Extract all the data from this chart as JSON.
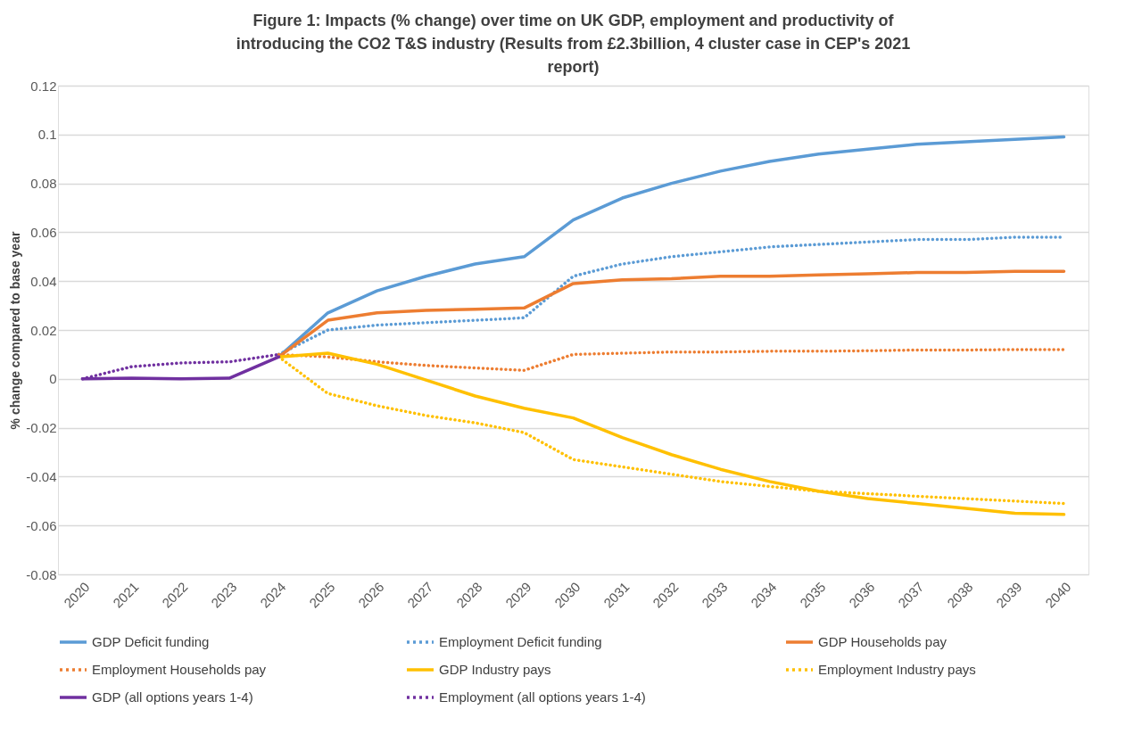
{
  "chart_data": {
    "type": "line",
    "title": "Figure 1: Impacts (% change) over time on UK GDP, employment and productivity of introducing the CO2 T&S industry (Results from £2.3billion, 4 cluster case in CEP's 2021 report)",
    "ylabel": "% change compared to base year",
    "categories": [
      "2020",
      "2021",
      "2022",
      "2023",
      "2024",
      "2025",
      "2026",
      "2027",
      "2028",
      "2029",
      "2030",
      "2031",
      "2032",
      "2033",
      "2034",
      "2035",
      "2036",
      "2037",
      "2038",
      "2039",
      "2040"
    ],
    "ylim": [
      -0.08,
      0.12
    ],
    "yticks": [
      -0.08,
      -0.06,
      -0.04,
      -0.02,
      0,
      0.02,
      0.04,
      0.06,
      0.08,
      0.1,
      0.12
    ],
    "grid": "y",
    "legend": "bottom",
    "series": [
      {
        "name": "GDP Deficit funding",
        "color": "#5b9bd5",
        "line_style": "solid",
        "values": [
          null,
          null,
          null,
          null,
          0.009,
          0.027,
          0.036,
          0.042,
          0.047,
          0.05,
          0.065,
          0.074,
          0.08,
          0.085,
          0.089,
          0.092,
          0.094,
          0.096,
          0.097,
          0.098,
          0.099
        ]
      },
      {
        "name": "Employment Deficit funding",
        "color": "#5b9bd5",
        "line_style": "dotted",
        "values": [
          null,
          null,
          null,
          null,
          0.01,
          0.02,
          0.022,
          0.023,
          0.024,
          0.025,
          0.042,
          0.047,
          0.05,
          0.052,
          0.054,
          0.055,
          0.056,
          0.057,
          0.057,
          0.058,
          0.058
        ]
      },
      {
        "name": "GDP Households pay",
        "color": "#ed7d31",
        "line_style": "solid",
        "values": [
          null,
          null,
          null,
          null,
          0.009,
          0.024,
          0.027,
          0.028,
          0.0285,
          0.029,
          0.039,
          0.0405,
          0.041,
          0.042,
          0.042,
          0.0425,
          0.043,
          0.0435,
          0.0435,
          0.044,
          0.044
        ]
      },
      {
        "name": "Employment Households pay",
        "color": "#ed7d31",
        "line_style": "dotted",
        "values": [
          null,
          null,
          null,
          null,
          0.01,
          0.009,
          0.007,
          0.0055,
          0.0045,
          0.0035,
          0.01,
          0.0105,
          0.011,
          0.011,
          0.0113,
          0.0113,
          0.0115,
          0.0118,
          0.0118,
          0.012,
          0.012
        ]
      },
      {
        "name": "GDP Industry pays",
        "color": "#ffc000",
        "line_style": "solid",
        "values": [
          null,
          null,
          null,
          null,
          0.009,
          0.0105,
          0.006,
          -0.0005,
          -0.007,
          -0.012,
          -0.016,
          -0.024,
          -0.031,
          -0.037,
          -0.042,
          -0.046,
          -0.049,
          -0.051,
          -0.053,
          -0.055,
          -0.0555
        ]
      },
      {
        "name": "Employment Industry pays",
        "color": "#ffc000",
        "line_style": "dotted",
        "values": [
          null,
          null,
          null,
          null,
          0.009,
          -0.006,
          -0.011,
          -0.015,
          -0.018,
          -0.022,
          -0.033,
          -0.036,
          -0.039,
          -0.042,
          -0.044,
          -0.046,
          -0.047,
          -0.048,
          -0.049,
          -0.05,
          -0.051
        ]
      },
      {
        "name": "GDP (all options years 1-4)",
        "color": "#7030a0",
        "line_style": "solid",
        "values": [
          0,
          0.0003,
          0,
          0.0003,
          0.009,
          null,
          null,
          null,
          null,
          null,
          null,
          null,
          null,
          null,
          null,
          null,
          null,
          null,
          null,
          null,
          null
        ]
      },
      {
        "name": "Employment (all options years 1-4)",
        "color": "#7030a0",
        "line_style": "dotted",
        "values": [
          0,
          0.005,
          0.0065,
          0.007,
          0.01,
          null,
          null,
          null,
          null,
          null,
          null,
          null,
          null,
          null,
          null,
          null,
          null,
          null,
          null,
          null,
          null
        ]
      }
    ]
  }
}
